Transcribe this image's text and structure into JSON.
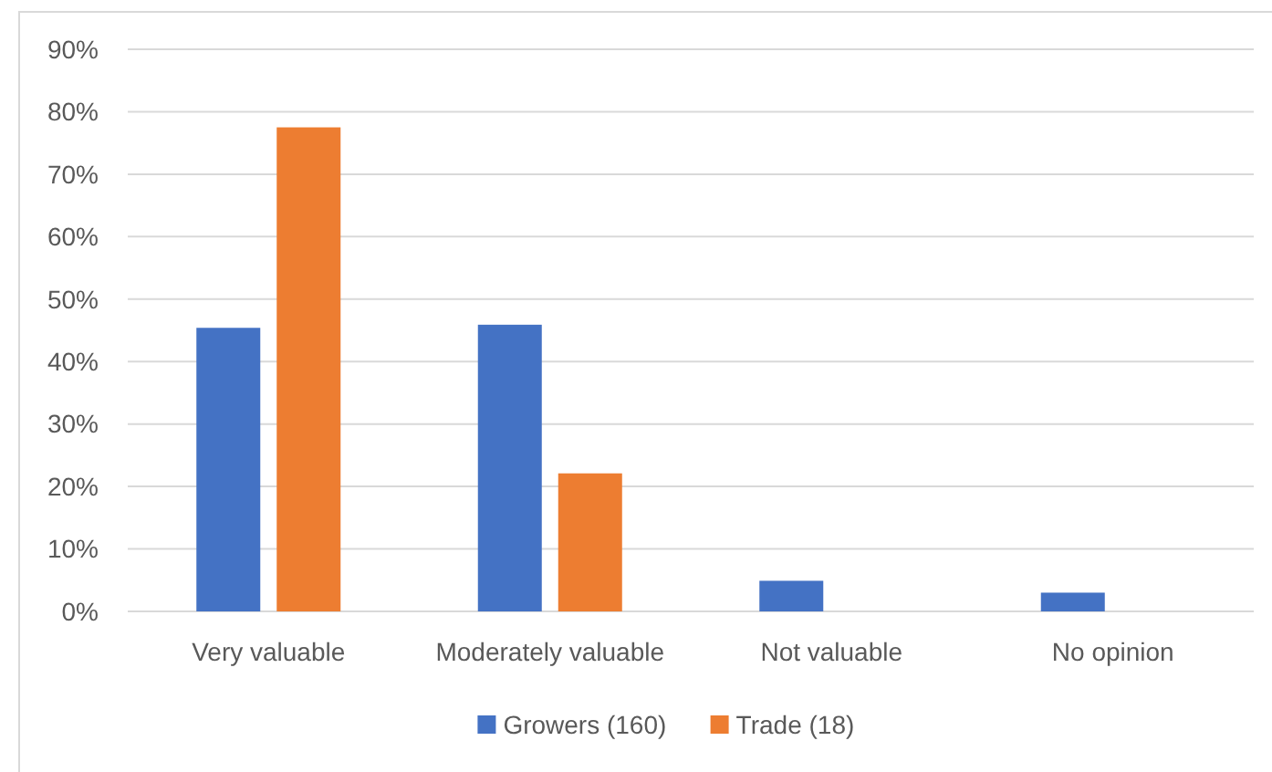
{
  "chart_data": {
    "type": "bar",
    "categories": [
      "Very valuable",
      "Moderately valuable",
      "Not valuable",
      "No opinion"
    ],
    "series": [
      {
        "name": "Growers (160)",
        "color": "#4472c4",
        "values": [
          45.4,
          45.9,
          4.9,
          3.0
        ]
      },
      {
        "name": "Trade (18)",
        "color": "#ed7d31",
        "values": [
          77.5,
          22.1,
          0,
          0
        ]
      }
    ],
    "ylim": [
      0,
      90
    ],
    "yticks": [
      {
        "value": 0,
        "label": "0%"
      },
      {
        "value": 10,
        "label": "10%"
      },
      {
        "value": 20,
        "label": "20%"
      },
      {
        "value": 30,
        "label": "30%"
      },
      {
        "value": 40,
        "label": "40%"
      },
      {
        "value": 50,
        "label": "50%"
      },
      {
        "value": 60,
        "label": "60%"
      },
      {
        "value": 70,
        "label": "70%"
      },
      {
        "value": 80,
        "label": "80%"
      },
      {
        "value": 90,
        "label": "90%"
      }
    ],
    "grid": "y",
    "legend": "bottom"
  }
}
